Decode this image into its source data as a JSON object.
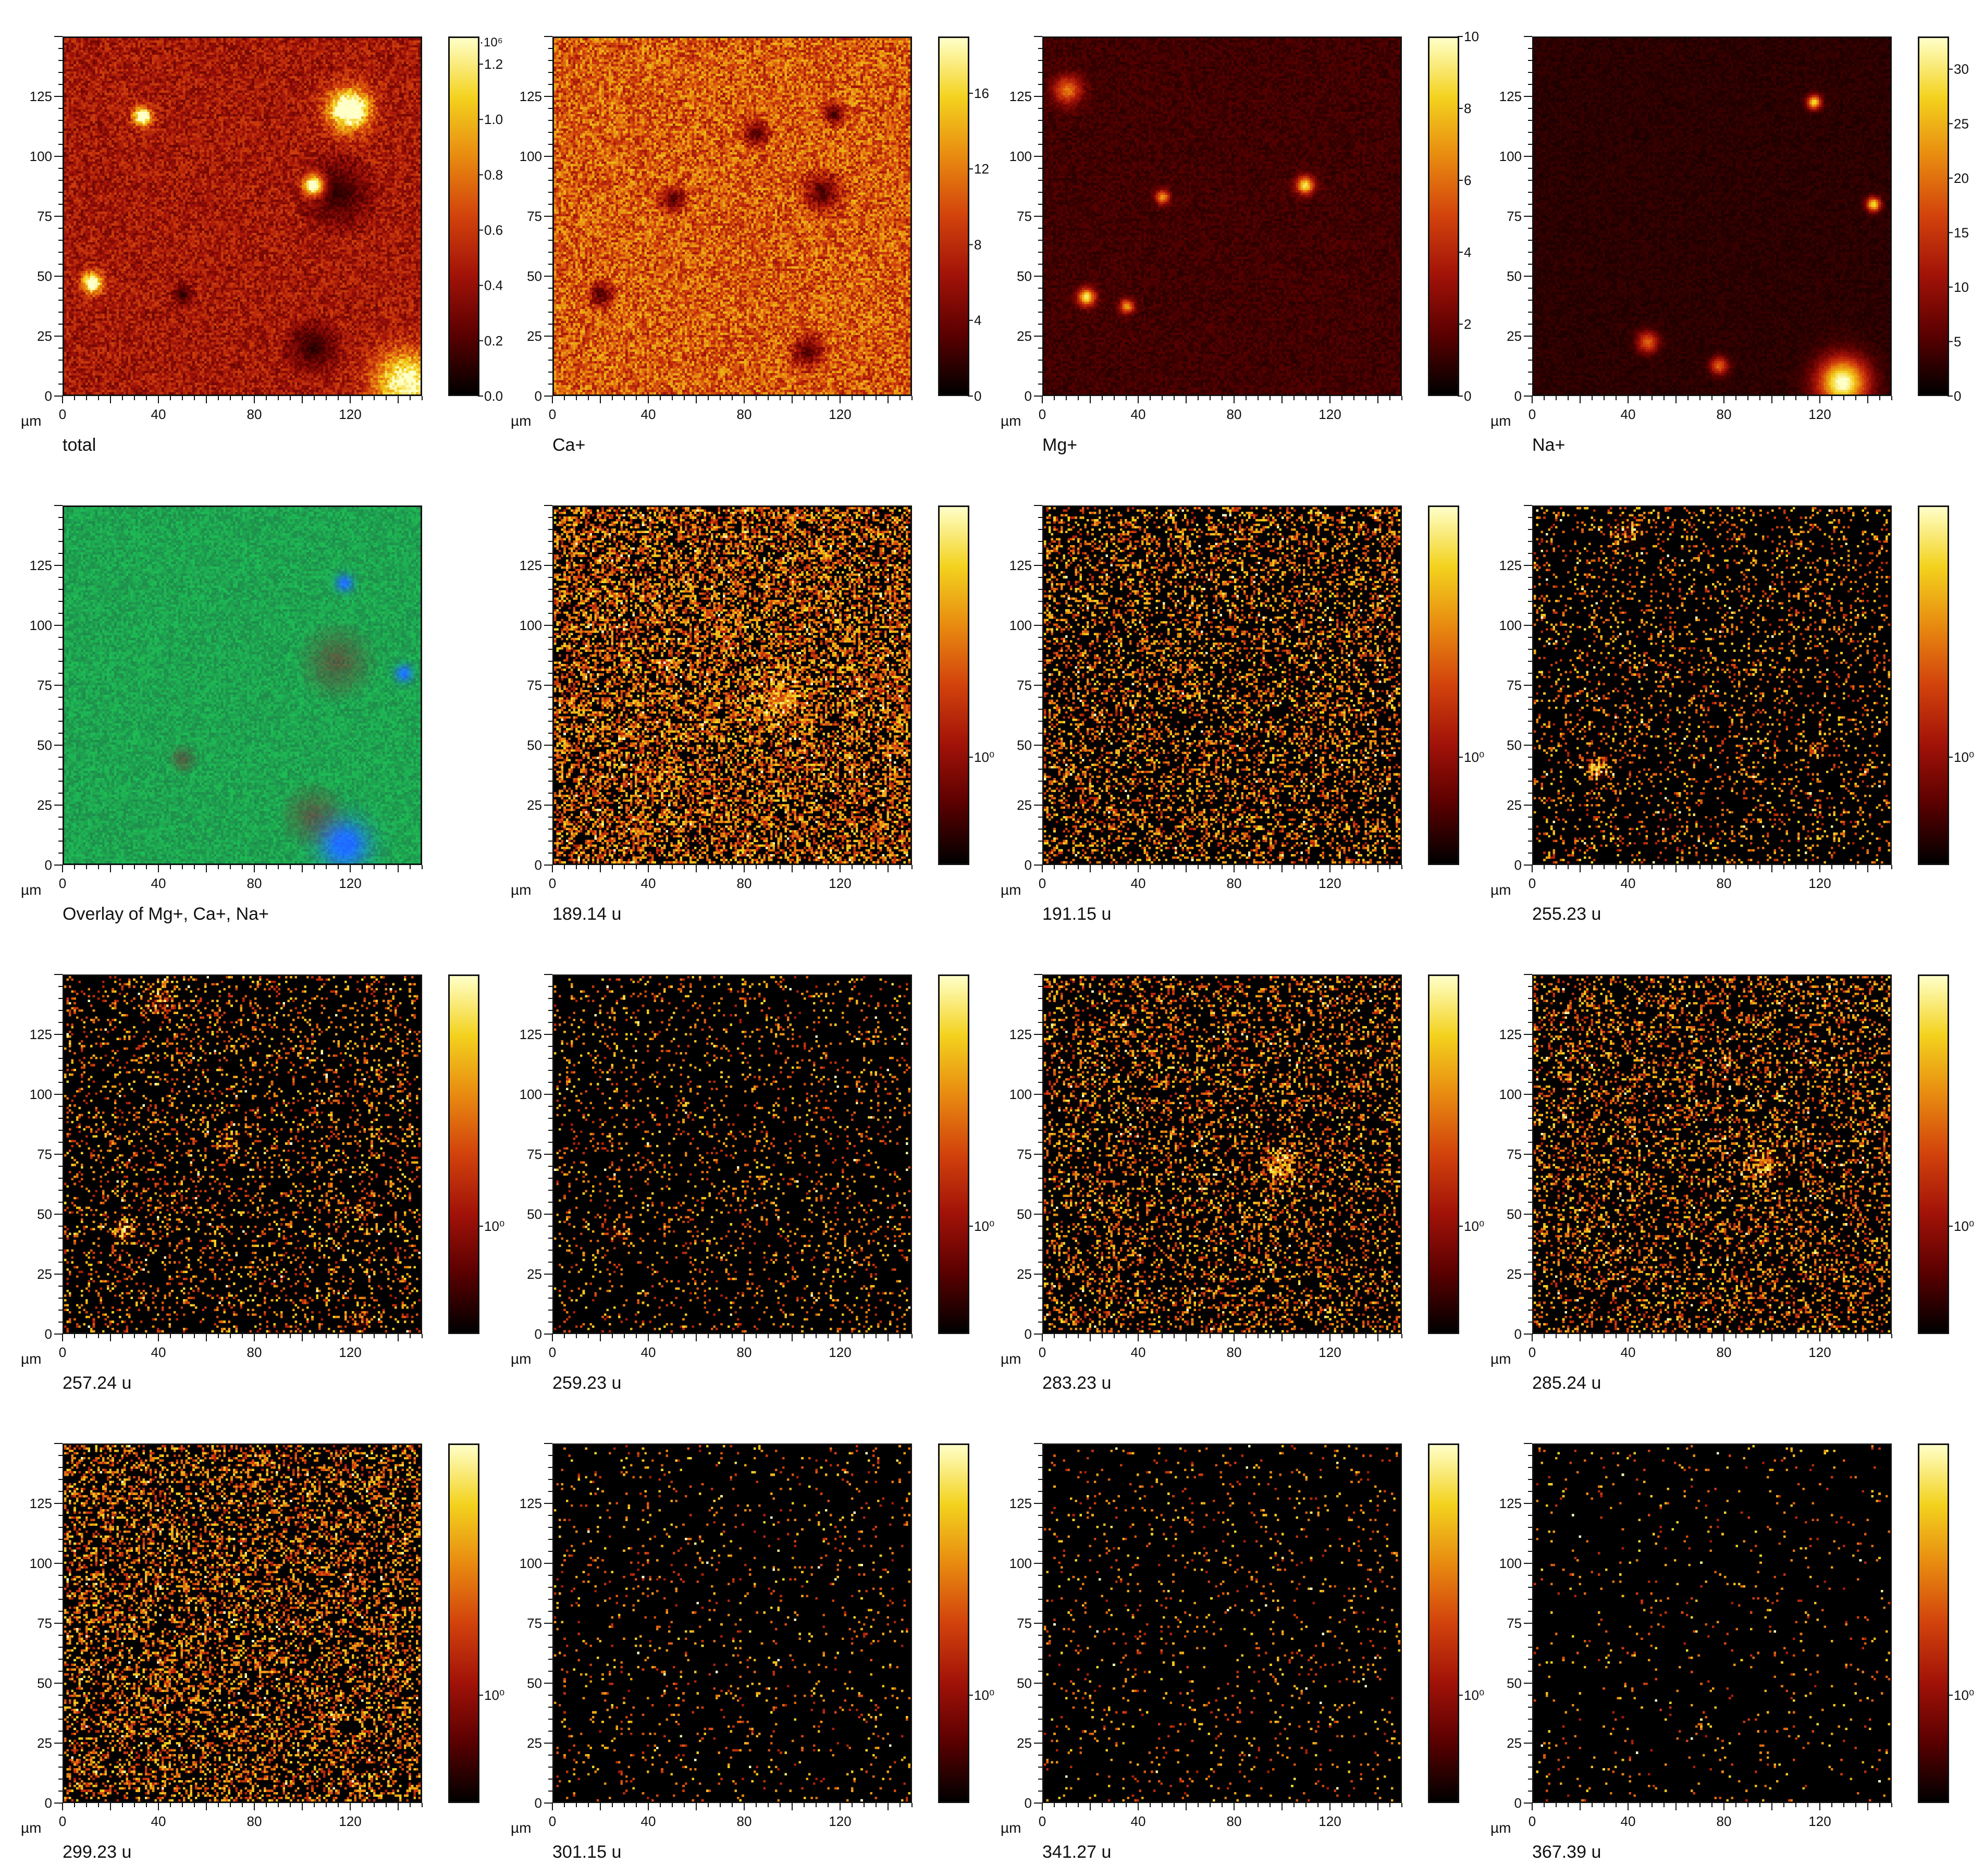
{
  "figure": {
    "axis_unit": "µm",
    "x_ticks": [
      0,
      40,
      80,
      120
    ],
    "y_ticks": [
      0,
      25,
      50,
      75,
      100,
      125
    ],
    "xlim": [
      0,
      150
    ],
    "ylim": [
      0,
      150
    ],
    "colormap": [
      "#000000",
      "#5a0000",
      "#a11208",
      "#d2420c",
      "#e88a10",
      "#f3d21e",
      "#ffffc8"
    ],
    "overlay_channels": {
      "red": "Mg+",
      "green": "Ca+",
      "blue": "Na+"
    }
  },
  "chart_data": [
    {
      "id": "p1",
      "type": "heatmap",
      "caption": "total",
      "colorbar_ticks": [
        "0.0",
        "0.2",
        "0.4",
        "0.6",
        "0.8",
        "1.0",
        "1.2"
      ],
      "colorbar_range": [
        0,
        1.3
      ],
      "colorbar_exponent": "·10⁶",
      "scale": "linear",
      "approx_mean_fraction": 0.35,
      "hotspots": [
        [
          120,
          120,
          12,
          0.9
        ],
        [
          105,
          88,
          6,
          0.95
        ],
        [
          33,
          117,
          5,
          0.9
        ],
        [
          12,
          47,
          6,
          0.8
        ],
        [
          144,
          5,
          18,
          0.7
        ]
      ],
      "darkspots": [
        [
          115,
          85,
          20
        ],
        [
          105,
          20,
          15
        ],
        [
          50,
          42,
          6
        ]
      ]
    },
    {
      "id": "p2",
      "type": "heatmap",
      "caption": "Ca+",
      "colorbar_ticks": [
        "0",
        "4",
        "8",
        "12",
        "16"
      ],
      "colorbar_range": [
        0,
        19
      ],
      "scale": "linear",
      "approx_mean_fraction": 0.55,
      "hotspots": [],
      "darkspots": [
        [
          20,
          42,
          8
        ],
        [
          50,
          82,
          8
        ],
        [
          113,
          85,
          12
        ],
        [
          107,
          18,
          10
        ],
        [
          118,
          118,
          7
        ],
        [
          85,
          110,
          8
        ]
      ]
    },
    {
      "id": "p3",
      "type": "heatmap",
      "caption": "Mg+",
      "colorbar_ticks": [
        "0",
        "2",
        "4",
        "6",
        "8",
        "10"
      ],
      "colorbar_range": [
        0,
        10
      ],
      "scale": "linear",
      "approx_mean_fraction": 0.12,
      "hotspots": [
        [
          110,
          88,
          5,
          0.8
        ],
        [
          18,
          41,
          5,
          0.8
        ],
        [
          50,
          83,
          4,
          0.6
        ],
        [
          35,
          37,
          4,
          0.6
        ],
        [
          10,
          128,
          8,
          0.5
        ]
      ],
      "darkspots": []
    },
    {
      "id": "p4",
      "type": "heatmap",
      "caption": "Na+",
      "colorbar_ticks": [
        "0",
        "5",
        "10",
        "15",
        "20",
        "25",
        "30"
      ],
      "colorbar_range": [
        0,
        33
      ],
      "scale": "linear",
      "approx_mean_fraction": 0.08,
      "hotspots": [
        [
          130,
          5,
          14,
          0.95
        ],
        [
          118,
          123,
          4,
          0.8
        ],
        [
          143,
          80,
          4,
          0.8
        ],
        [
          48,
          22,
          6,
          0.5
        ],
        [
          78,
          12,
          5,
          0.5
        ]
      ],
      "darkspots": []
    },
    {
      "id": "p5",
      "type": "overlay",
      "caption": "Overlay of Mg+, Ca+, Na+",
      "colorbar_ticks": [],
      "approx_mean_fraction": 0.6,
      "hotspots": [
        [
          118,
          8,
          14,
          1.0
        ],
        [
          143,
          80,
          5,
          0.9
        ],
        [
          118,
          118,
          5,
          0.9
        ]
      ],
      "darkspots": [
        [
          115,
          85,
          18
        ],
        [
          105,
          20,
          15
        ],
        [
          50,
          44,
          7
        ]
      ]
    },
    {
      "id": "p6",
      "type": "heatmap",
      "caption": "189.14 u",
      "colorbar_ticks": [
        "10⁰"
      ],
      "scale": "log",
      "approx_mean_fraction": 0.5,
      "hotspots": [
        [
          95,
          70,
          12,
          0.6
        ]
      ],
      "darkspots": []
    },
    {
      "id": "p7",
      "type": "heatmap",
      "caption": "191.15 u",
      "colorbar_ticks": [
        "10⁰"
      ],
      "scale": "log",
      "approx_mean_fraction": 0.3,
      "hotspots": [],
      "darkspots": []
    },
    {
      "id": "p8",
      "type": "heatmap",
      "caption": "255.23 u",
      "colorbar_ticks": [
        "10⁰"
      ],
      "scale": "log",
      "approx_mean_fraction": 0.14,
      "hotspots": [
        [
          27,
          40,
          6,
          0.8
        ],
        [
          120,
          48,
          5,
          0.5
        ],
        [
          40,
          140,
          8,
          0.5
        ]
      ],
      "darkspots": []
    },
    {
      "id": "p9",
      "type": "heatmap",
      "caption": "257.24 u",
      "colorbar_ticks": [
        "10⁰"
      ],
      "scale": "log",
      "approx_mean_fraction": 0.16,
      "hotspots": [
        [
          25,
          43,
          6,
          0.8
        ],
        [
          70,
          80,
          6,
          0.4
        ],
        [
          125,
          52,
          6,
          0.4
        ],
        [
          125,
          5,
          6,
          0.5
        ],
        [
          40,
          140,
          8,
          0.5
        ]
      ],
      "darkspots": []
    },
    {
      "id": "p10",
      "type": "heatmap",
      "caption": "259.23 u",
      "colorbar_ticks": [
        "10⁰"
      ],
      "scale": "log",
      "approx_mean_fraction": 0.1,
      "hotspots": [
        [
          27,
          42,
          5,
          0.6
        ]
      ],
      "darkspots": []
    },
    {
      "id": "p11",
      "type": "heatmap",
      "caption": "283.23 u",
      "colorbar_ticks": [
        "10⁰"
      ],
      "scale": "log",
      "approx_mean_fraction": 0.25,
      "hotspots": [
        [
          100,
          70,
          9,
          0.8
        ]
      ],
      "darkspots": []
    },
    {
      "id": "p12",
      "type": "heatmap",
      "caption": "285.24 u",
      "colorbar_ticks": [
        "10⁰"
      ],
      "scale": "log",
      "approx_mean_fraction": 0.25,
      "hotspots": [
        [
          97,
          71,
          9,
          0.7
        ]
      ],
      "darkspots": []
    },
    {
      "id": "p13",
      "type": "heatmap",
      "caption": "299.23 u",
      "colorbar_ticks": [
        "10⁰"
      ],
      "scale": "log",
      "approx_mean_fraction": 0.35,
      "hotspots": [],
      "darkspots": []
    },
    {
      "id": "p14",
      "type": "heatmap",
      "caption": "301.15 u",
      "colorbar_ticks": [
        "10⁰"
      ],
      "scale": "log",
      "approx_mean_fraction": 0.05,
      "hotspots": [],
      "darkspots": []
    },
    {
      "id": "p15",
      "type": "heatmap",
      "caption": "341.27 u",
      "colorbar_ticks": [
        "10⁰"
      ],
      "scale": "log",
      "approx_mean_fraction": 0.05,
      "hotspots": [],
      "darkspots": []
    },
    {
      "id": "p16",
      "type": "heatmap",
      "caption": "367.39 u",
      "colorbar_ticks": [
        "10⁰"
      ],
      "scale": "log",
      "approx_mean_fraction": 0.03,
      "hotspots": [],
      "darkspots": []
    }
  ]
}
